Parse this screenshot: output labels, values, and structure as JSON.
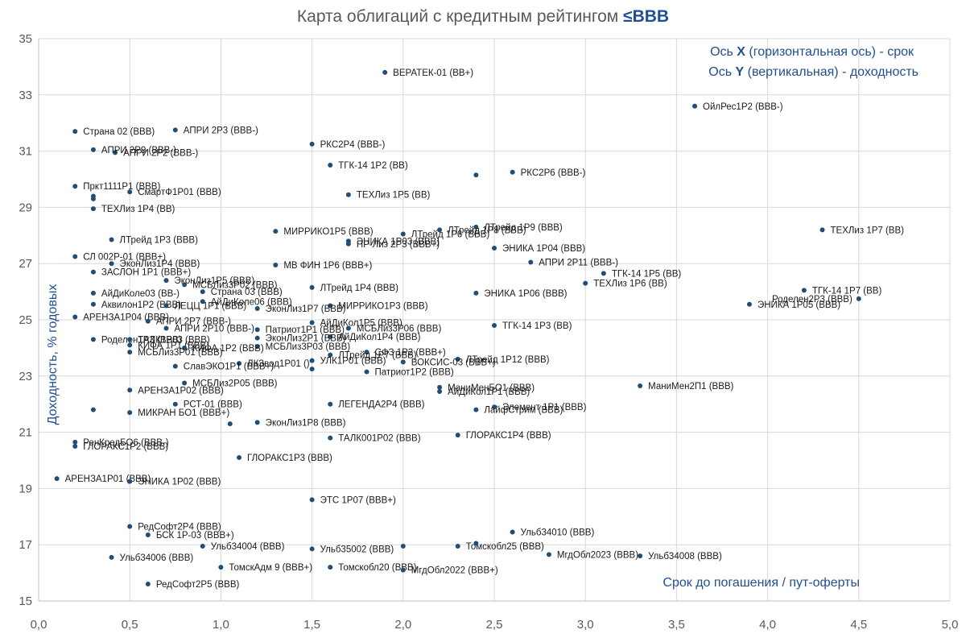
{
  "chart_data": {
    "type": "scatter",
    "title": "Карта облигаций с кредитным рейтингом ",
    "title_accent": "≤BBB",
    "xlabel": "Срок до погашения / пут-оферты",
    "ylabel": "Доходность, % годовых",
    "annotation_line1": {
      "prefix": "Ось ",
      "axis": "X",
      "suffix": " (горизонтальная ось) - срок"
    },
    "annotation_line2": {
      "prefix": "Ось ",
      "axis": "Y",
      "suffix": " (вертикальная) - доходность"
    },
    "xlim": [
      0,
      5
    ],
    "ylim": [
      15,
      35
    ],
    "x_ticks": [
      "0,0",
      "0,5",
      "1,0",
      "1,5",
      "2,0",
      "2,5",
      "3,0",
      "3,5",
      "4,0",
      "4,5",
      "5,0"
    ],
    "y_ticks": [
      "15",
      "17",
      "19",
      "21",
      "23",
      "25",
      "27",
      "29",
      "31",
      "33",
      "35"
    ],
    "point_color": "#1f4e79",
    "points": [
      {
        "label": "ВЕРАТЕК-01 (BB+)",
        "x": 1.9,
        "y": 33.8
      },
      {
        "label": "ОйлРес1Р2 (BBB-)",
        "x": 3.6,
        "y": 32.6
      },
      {
        "label": "Страна 02 (BBB)",
        "x": 0.2,
        "y": 31.7
      },
      {
        "label": "АПРИ 2Р3 (BBB-)",
        "x": 0.75,
        "y": 31.75
      },
      {
        "label": "РКС2Р4 (BBB-)",
        "x": 1.5,
        "y": 31.25
      },
      {
        "label": "АПРИ 2Р2 (BBB-)",
        "x": 0.42,
        "y": 30.95
      },
      {
        "label": "АПРИ 2Р9 (BBB-)",
        "x": 0.3,
        "y": 31.05
      },
      {
        "label": "ТГК-14 1Р2 (BB)",
        "x": 1.6,
        "y": 30.5
      },
      {
        "label": "",
        "x": 2.4,
        "y": 30.15
      },
      {
        "label": "РКС2Р6 (BBB-)",
        "x": 2.6,
        "y": 30.25
      },
      {
        "label": "Пркт1111Р1 (BBB)",
        "x": 0.2,
        "y": 29.75
      },
      {
        "label": "СмартФ1Р01 (BBB)",
        "x": 0.5,
        "y": 29.55
      },
      {
        "label": "ТЕХЛиз 1Р5 (BB)",
        "x": 1.7,
        "y": 29.45
      },
      {
        "label": "",
        "x": 0.3,
        "y": 29.4
      },
      {
        "label": "",
        "x": 0.3,
        "y": 29.3
      },
      {
        "label": "ТЕХЛиз 1Р4 (BB)",
        "x": 0.3,
        "y": 28.95
      },
      {
        "label": "ТЕХЛиз 1Р7 (BB)",
        "x": 4.3,
        "y": 28.2
      },
      {
        "label": "ЛТрейд 1Р9 (BBB)",
        "x": 2.4,
        "y": 28.3
      },
      {
        "label": "ЛТрейд 1Р8 (BBB)",
        "x": 2.2,
        "y": 28.2
      },
      {
        "label": "ЛТрейд 1Р6 (BBB)",
        "x": 2.0,
        "y": 28.05
      },
      {
        "label": "МИРРИКО1Р5 (BBB)",
        "x": 1.3,
        "y": 28.15
      },
      {
        "label": "ЭНИКА 1Р03 (BBB)",
        "x": 1.7,
        "y": 27.8
      },
      {
        "label": "ПР-Лиз 2Р3 (BBB+)",
        "x": 1.7,
        "y": 27.7
      },
      {
        "label": "ЭНИКА 1Р04 (BBB)",
        "x": 2.5,
        "y": 27.55
      },
      {
        "label": "ЛТрейд 1Р3 (BBB)",
        "x": 0.4,
        "y": 27.85
      },
      {
        "label": "СЛ 002Р-01 (BBB+)",
        "x": 0.2,
        "y": 27.25
      },
      {
        "label": "АПРИ 2Р11 (BBB-)",
        "x": 2.7,
        "y": 27.05
      },
      {
        "label": "ЭконЛиз1Р4 (BBB)",
        "x": 0.4,
        "y": 27.0
      },
      {
        "label": "МВ ФИН 1Р6 (BBB+)",
        "x": 1.3,
        "y": 26.95
      },
      {
        "label": "ЗАСЛОН 1Р1 (BBB+)",
        "x": 0.3,
        "y": 26.7
      },
      {
        "label": "ТГК-14 1Р5 (BB)",
        "x": 3.1,
        "y": 26.65
      },
      {
        "label": "ЭконЛиз1Р5 (BBB)",
        "x": 0.7,
        "y": 26.4
      },
      {
        "label": "МСБЛиз3Р02 (BBB)",
        "x": 0.8,
        "y": 26.25
      },
      {
        "label": "ТЕХЛиз 1Р6 (BB)",
        "x": 3.0,
        "y": 26.3
      },
      {
        "label": "ЛТрейд 1Р4 (BBB)",
        "x": 1.5,
        "y": 26.15
      },
      {
        "label": "Страна 03 (BBB)",
        "x": 0.9,
        "y": 26.0
      },
      {
        "label": "ТГК-14 1Р7 (BB)",
        "x": 4.2,
        "y": 26.05
      },
      {
        "label": "АйДиКоле03 (BB-)",
        "x": 0.3,
        "y": 25.95
      },
      {
        "label": "ЭНИКА 1Р06 (BBB)",
        "x": 2.4,
        "y": 25.95
      },
      {
        "label": "Роделен2Р3 (BBB)",
        "x": 4.5,
        "y": 25.75
      },
      {
        "label": "ЭНИКА 1Р05 (BBB)",
        "x": 3.9,
        "y": 25.55
      },
      {
        "label": "Аквилон1Р2 (BBB)",
        "x": 0.3,
        "y": 25.55
      },
      {
        "label": "ЛЕЦЦ 1Р1 (BBB)",
        "x": 0.7,
        "y": 25.5
      },
      {
        "label": "АйДиКоле06 (BBB)",
        "x": 0.9,
        "y": 25.65
      },
      {
        "label": "МИРРИКО1Р3 (BBB)",
        "x": 1.6,
        "y": 25.5
      },
      {
        "label": "ЭконЛиз1Р7 (BBB)",
        "x": 1.2,
        "y": 25.4
      },
      {
        "label": "АРЕНЗА1Р04 (BBB)",
        "x": 0.2,
        "y": 25.1
      },
      {
        "label": "АПРИ 2Р7 (BBB-)",
        "x": 0.6,
        "y": 24.95
      },
      {
        "label": "АПРИ 2Р10 (BBB-)",
        "x": 0.7,
        "y": 24.7
      },
      {
        "label": "АйДиКол1Р5 (BBB)",
        "x": 1.5,
        "y": 24.9
      },
      {
        "label": "МСБЛиз3Р06 (BBB)",
        "x": 1.7,
        "y": 24.7
      },
      {
        "label": "ТГК-14 1Р3 (BB)",
        "x": 2.5,
        "y": 24.8
      },
      {
        "label": "Патриот1Р1 (BBB)",
        "x": 1.2,
        "y": 24.65
      },
      {
        "label": "АйДиКол1Р4 (BBB)",
        "x": 1.6,
        "y": 24.4
      },
      {
        "label": "ЭконЛиз2Р1 (BBB)",
        "x": 1.2,
        "y": 24.35
      },
      {
        "label": "Роделен1Р3 (BBB)",
        "x": 0.3,
        "y": 24.3
      },
      {
        "label": "ТАЛК1Р03 (BBB)",
        "x": 0.5,
        "y": 24.3
      },
      {
        "label": "КИФА 1Р1 (BBB)",
        "x": 0.5,
        "y": 24.1
      },
      {
        "label": "МСБЛиз3Р03 (BBB)",
        "x": 1.2,
        "y": 24.05
      },
      {
        "label": "КИФА 1Р2 (BBB)",
        "x": 0.8,
        "y": 24.0
      },
      {
        "label": "МСБЛиз3Р01 (BBB)",
        "x": 0.5,
        "y": 23.85
      },
      {
        "label": "СФЗ 1Р2 (BBB+)",
        "x": 1.8,
        "y": 23.85
      },
      {
        "label": "ЛТрейд 1Р7 (BBB)",
        "x": 1.6,
        "y": 23.75
      },
      {
        "label": "ЛТрейд 1Р12 (BBB)",
        "x": 2.3,
        "y": 23.6
      },
      {
        "label": "ВОКСИС-03 (BBB+)",
        "x": 2.0,
        "y": 23.5
      },
      {
        "label": "УЛК1Р01 (BBB)",
        "x": 1.5,
        "y": 23.55
      },
      {
        "label": "ЛКЗвод1Р01 ()",
        "x": 1.1,
        "y": 23.45
      },
      {
        "label": "СлавЭКО1Р1 (BBB+)",
        "x": 0.75,
        "y": 23.35
      },
      {
        "label": "",
        "x": 1.5,
        "y": 23.25
      },
      {
        "label": "Патриот1Р2 (BBB)",
        "x": 1.8,
        "y": 23.15
      },
      {
        "label": "МСБЛиз2Р05 (BBB)",
        "x": 0.8,
        "y": 22.75
      },
      {
        "label": "МаниМен2П1 (BBB)",
        "x": 3.3,
        "y": 22.65
      },
      {
        "label": "МаниМенБО1 (BBB)",
        "x": 2.2,
        "y": 22.6
      },
      {
        "label": "АйДиКол1Р1 (BBB)",
        "x": 2.2,
        "y": 22.45
      },
      {
        "label": "АРЕНЗА1Р02 (BBB)",
        "x": 0.5,
        "y": 22.5
      },
      {
        "label": "РСТ-01 (BBB)",
        "x": 0.75,
        "y": 22.0
      },
      {
        "label": "ЛЕГЕНДА2Р4 (BBB)",
        "x": 1.6,
        "y": 22.0
      },
      {
        "label": "Элемент 1Р1 (BBB)",
        "x": 2.5,
        "y": 21.9
      },
      {
        "label": "ЛайфСтрим (BBB)",
        "x": 2.4,
        "y": 21.8
      },
      {
        "label": "МИКРАН БО1 (BBB+)",
        "x": 0.5,
        "y": 21.7
      },
      {
        "label": "",
        "x": 0.3,
        "y": 21.8
      },
      {
        "label": "ЭконЛиз1Р8 (BBB)",
        "x": 1.2,
        "y": 21.35
      },
      {
        "label": "",
        "x": 1.05,
        "y": 21.3
      },
      {
        "label": "ТАЛК001Р02 (BBB)",
        "x": 1.6,
        "y": 20.8
      },
      {
        "label": "ГЛОРАКС1Р4 (BBB)",
        "x": 2.3,
        "y": 20.9
      },
      {
        "label": "РенКредБО6 (BBB-)",
        "x": 0.2,
        "y": 20.65
      },
      {
        "label": "ГЛОРАКС1Р2 (BBB)",
        "x": 0.2,
        "y": 20.5
      },
      {
        "label": "ГЛОРАКС1Р3 (BBB)",
        "x": 1.1,
        "y": 20.1
      },
      {
        "label": "АРЕНЗА1Р01 (BBB)",
        "x": 0.1,
        "y": 19.35
      },
      {
        "label": "ЭНИКА 1Р02 (BBB)",
        "x": 0.5,
        "y": 19.25
      },
      {
        "label": "ЭТС 1Р07 (BBB+)",
        "x": 1.5,
        "y": 18.6
      },
      {
        "label": "РедСофт2Р4 (BBB)",
        "x": 0.5,
        "y": 17.65
      },
      {
        "label": "Ульб34010 (BBB)",
        "x": 2.6,
        "y": 17.45
      },
      {
        "label": "БСК 1Р-03 (BBB+)",
        "x": 0.6,
        "y": 17.35
      },
      {
        "label": "Томскобл25 (BBB)",
        "x": 2.3,
        "y": 16.95
      },
      {
        "label": "",
        "x": 2.4,
        "y": 17.05
      },
      {
        "label": "Ульб34004 (BBB)",
        "x": 0.9,
        "y": 16.95
      },
      {
        "label": "",
        "x": 2.0,
        "y": 16.95
      },
      {
        "label": "Ульб35002 (BBB)",
        "x": 1.5,
        "y": 16.85
      },
      {
        "label": "МгдОбл2023 (BBB)",
        "x": 2.8,
        "y": 16.65
      },
      {
        "label": "Ульб34008 (BBB)",
        "x": 3.3,
        "y": 16.6
      },
      {
        "label": "Ульб34006 (BBB)",
        "x": 0.4,
        "y": 16.55
      },
      {
        "label": "ТомскАдм 9 (BBB+)",
        "x": 1.0,
        "y": 16.2
      },
      {
        "label": "Томскобл20 (BBB)",
        "x": 1.6,
        "y": 16.2
      },
      {
        "label": "МгдОбл2022 (BBB+)",
        "x": 2.0,
        "y": 16.1
      },
      {
        "label": "РедСофт2Р5 (BBB)",
        "x": 0.6,
        "y": 15.6
      }
    ],
    "label_offsets_note": "label text only; positions computed from x/y"
  }
}
